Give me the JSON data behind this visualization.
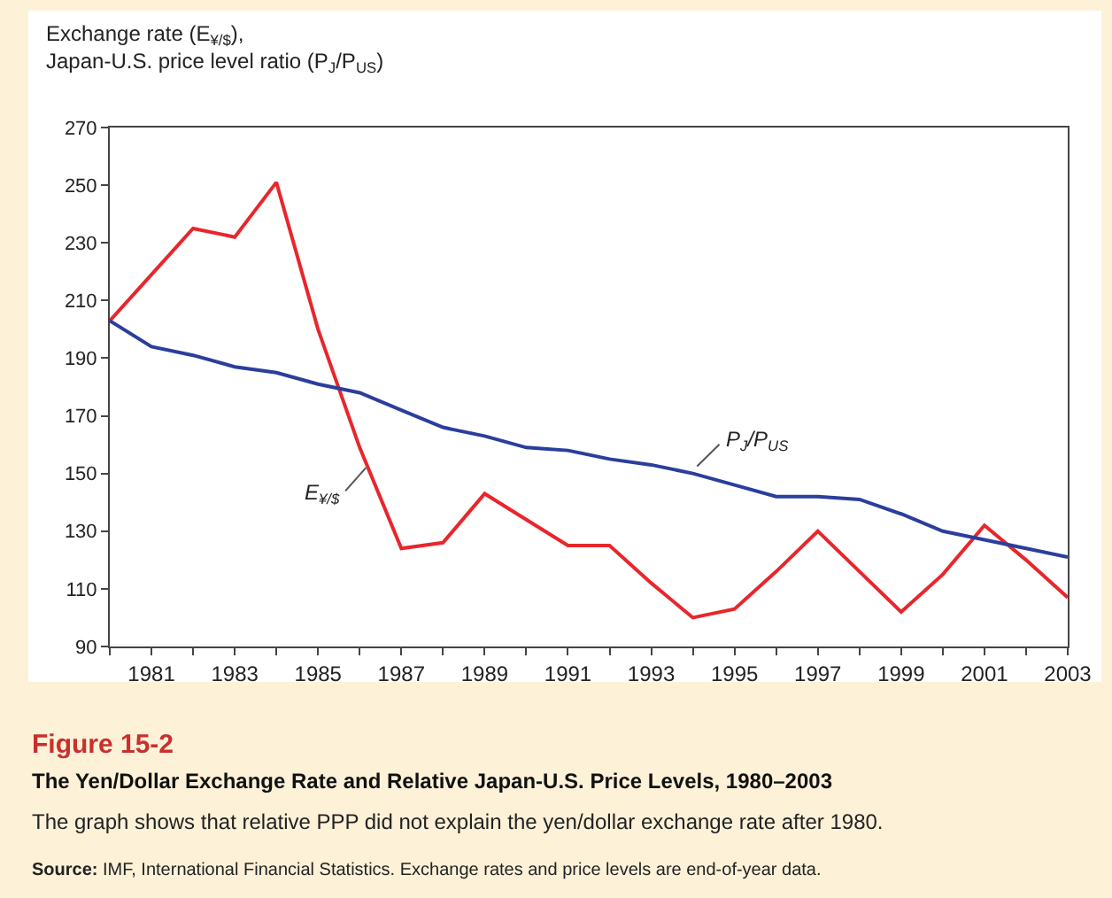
{
  "chart_data": {
    "type": "line",
    "title": "The Yen/Dollar Exchange Rate and Relative Japan-U.S. Price Levels, 1980–2003",
    "subtitle": "The graph shows that relative PPP did not explain the yen/dollar exchange rate after 1980.",
    "ylabel": "Exchange rate (E$_{¥/$}$),\nJapan-U.S. price level ratio (P$_{J}$/P$_{US}$)",
    "annotations": [
      "Figure 15-2",
      "Source: IMF, International Financial Statistics. Exchange rates and price levels are end-of-year data."
    ],
    "x": [
      1980,
      1981,
      1982,
      1983,
      1984,
      1985,
      1986,
      1987,
      1988,
      1989,
      1990,
      1991,
      1992,
      1993,
      1994,
      1995,
      1996,
      1997,
      1998,
      1999,
      2000,
      2001,
      2002,
      2003
    ],
    "series": [
      {
        "name": "E$_{¥/$}$",
        "color": "#e8262c",
        "values": [
          203,
          219,
          235,
          232,
          251,
          200,
          159,
          124,
          126,
          143,
          134,
          125,
          125,
          112,
          100,
          103,
          116,
          130,
          116,
          102,
          115,
          132,
          120,
          107
        ]
      },
      {
        "name": "P$_{J}$/P$_{US}$",
        "color": "#2b3e9c",
        "values": [
          203,
          194,
          191,
          187,
          185,
          181,
          178,
          172,
          166,
          163,
          159,
          158,
          155,
          153,
          150,
          146,
          142,
          142,
          141,
          136,
          130,
          127,
          124,
          121
        ]
      }
    ],
    "xlim": [
      1980,
      2003
    ],
    "xticks": [
      {
        "value": 1980,
        "label": null
      },
      1981,
      {
        "value": 1982,
        "label": null
      },
      1983,
      {
        "value": 1984,
        "label": null
      },
      1985,
      {
        "value": 1986,
        "label": null
      },
      1987,
      {
        "value": 1988,
        "label": null
      },
      1989,
      {
        "value": 1990,
        "label": null
      },
      1991,
      {
        "value": 1992,
        "label": null
      },
      1993,
      {
        "value": 1994,
        "label": null
      },
      1995,
      {
        "value": 1996,
        "label": null
      },
      1997,
      {
        "value": 1998,
        "label": null
      },
      1999,
      {
        "value": 2000,
        "label": null
      },
      2001,
      {
        "value": 2002,
        "label": null
      },
      2003
    ],
    "ylim": [
      90,
      270
    ],
    "yticks": [
      90,
      110,
      130,
      150,
      170,
      190,
      210,
      230,
      250,
      270
    ],
    "legend": false,
    "marker": "none",
    "line_style": "solid"
  }
}
